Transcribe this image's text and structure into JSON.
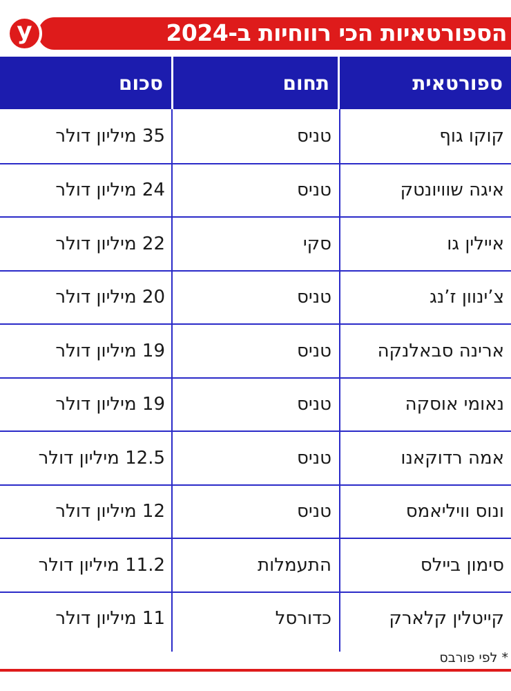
{
  "banner": {
    "title": "הספורטאיות הכי רווחיות ב-2024",
    "logo_glyph": "y"
  },
  "chart_data": {
    "type": "table",
    "title": "הספורטאיות הכי רווחיות ב-2024",
    "headers": {
      "athlete": "ספורטאית",
      "sport": "תחום",
      "amount": "סכום"
    },
    "rows": [
      {
        "athlete": "קוקו גוף",
        "sport": "טניס",
        "amount": "35 מיליון דולר"
      },
      {
        "athlete": "איגה שוויונטק",
        "sport": "טניס",
        "amount": "24 מיליון דולר"
      },
      {
        "athlete": "איילין גו",
        "sport": "סקי",
        "amount": "22 מיליון דולר"
      },
      {
        "athlete": "צ’ינוון ז’נג",
        "sport": "טניס",
        "amount": "20 מיליון דולר"
      },
      {
        "athlete": "ארינה סבאלנקה",
        "sport": "טניס",
        "amount": "19 מיליון דולר"
      },
      {
        "athlete": "נאומי אוסקה",
        "sport": "טניס",
        "amount": "19 מיליון דולר"
      },
      {
        "athlete": "אמה רדוקאנו",
        "sport": "טניס",
        "amount": "12.5 מיליון דולר"
      },
      {
        "athlete": "ונוס וויליאמס",
        "sport": "טניס",
        "amount": "12 מיליון דולר"
      },
      {
        "athlete": "סימון ביילס",
        "sport": "התעמלות",
        "amount": "11.2 מיליון דולר"
      },
      {
        "athlete": "קייטלין קלארק",
        "sport": "כדורסל",
        "amount": "11 מיליון דולר"
      }
    ]
  },
  "footnote": "* לפי פורבס",
  "colors": {
    "banner_red": "#de1b1b",
    "header_blue": "#1c1cae",
    "grid_blue": "#2a2ac8"
  }
}
